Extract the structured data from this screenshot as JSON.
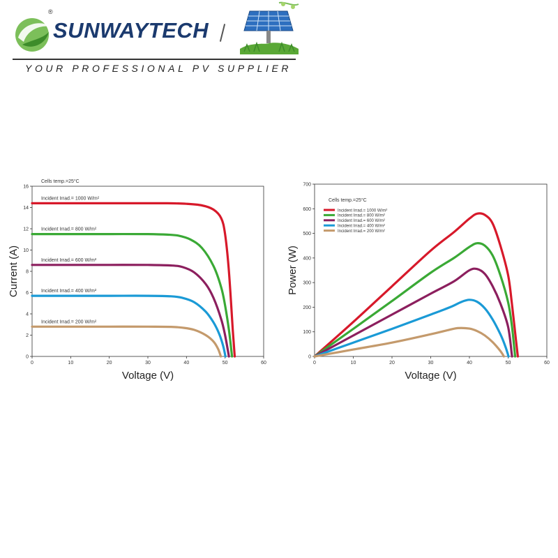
{
  "header": {
    "brand": "SUNWAYTECH",
    "registered": "®",
    "tagline": "YOUR PROFESSIONAL PV SUPPLIER",
    "colors": {
      "brand_text": "#1b3a6e",
      "logo_green": "#6ab04c"
    },
    "icons": [
      "logo-mark-icon",
      "solar-panel-icon"
    ]
  },
  "chart_data": [
    {
      "type": "line",
      "title": "",
      "xlabel": "Voltage (V)",
      "ylabel": "Current (A)",
      "xlim": [
        0,
        60
      ],
      "ylim": [
        0,
        16
      ],
      "xticks": [
        0,
        10,
        20,
        30,
        40,
        50,
        60
      ],
      "yticks": [
        0,
        2,
        4,
        6,
        8,
        10,
        12,
        14,
        16
      ],
      "grid": false,
      "note": "Cells temp.=25°C",
      "series": [
        {
          "name": "Incident Irrad.= 1000 W/m²",
          "color": "#d7192a",
          "x": [
            0,
            10,
            20,
            30,
            35,
            40,
            44,
            47,
            49,
            50,
            51,
            52,
            52.5
          ],
          "y": [
            14.4,
            14.4,
            14.4,
            14.4,
            14.4,
            14.35,
            14.2,
            13.8,
            13.0,
            11.5,
            8.0,
            2.5,
            0
          ]
        },
        {
          "name": "Incident Irrad.= 800 W/m²",
          "color": "#3aa935",
          "x": [
            0,
            10,
            20,
            30,
            35,
            38,
            41,
            44,
            47,
            49,
            50,
            51,
            51.8
          ],
          "y": [
            11.5,
            11.5,
            11.5,
            11.5,
            11.45,
            11.35,
            11.0,
            10.2,
            8.5,
            6.5,
            4.8,
            2.5,
            0
          ]
        },
        {
          "name": "Incident Irrad.= 600 W/m²",
          "color": "#8c1f5e",
          "x": [
            0,
            10,
            20,
            30,
            36,
            39,
            42,
            45,
            47,
            49,
            50,
            51
          ],
          "y": [
            8.6,
            8.6,
            8.6,
            8.6,
            8.55,
            8.4,
            7.9,
            6.8,
            5.5,
            3.5,
            2.0,
            0
          ]
        },
        {
          "name": "Incident Irrad.= 400 W/m²",
          "color": "#1a9ad6",
          "x": [
            0,
            10,
            20,
            30,
            36,
            39,
            42,
            45,
            47,
            48.5,
            49.5,
            50.1
          ],
          "y": [
            5.7,
            5.7,
            5.7,
            5.7,
            5.65,
            5.5,
            5.1,
            4.2,
            3.2,
            2.1,
            1.0,
            0
          ]
        },
        {
          "name": "Incident Irrad.= 200 W/m²",
          "color": "#c49a6c",
          "x": [
            0,
            10,
            20,
            30,
            36,
            39,
            42,
            45,
            47,
            48.2,
            48.9
          ],
          "y": [
            2.8,
            2.8,
            2.8,
            2.8,
            2.78,
            2.7,
            2.5,
            2.0,
            1.4,
            0.7,
            0
          ]
        }
      ]
    },
    {
      "type": "line",
      "title": "",
      "xlabel": "Voltage (V)",
      "ylabel": "Power (W)",
      "xlim": [
        0,
        60
      ],
      "ylim": [
        0,
        700
      ],
      "xticks": [
        0,
        10,
        20,
        30,
        40,
        50,
        60
      ],
      "yticks": [
        0,
        100,
        200,
        300,
        400,
        500,
        600,
        700
      ],
      "grid": false,
      "note": "Cells temp.=25°C",
      "legend": "top-left",
      "series": [
        {
          "name": "Incident Irrad.= 1000 W/m²",
          "color": "#d7192a",
          "x": [
            0,
            10,
            20,
            30,
            36,
            40,
            42,
            44,
            46,
            48,
            50,
            51,
            52,
            52.5
          ],
          "y": [
            0,
            140,
            285,
            430,
            505,
            560,
            580,
            575,
            540,
            450,
            330,
            210,
            70,
            0
          ]
        },
        {
          "name": "Incident Irrad.= 800 W/m²",
          "color": "#3aa935",
          "x": [
            0,
            10,
            20,
            30,
            36,
            40,
            42,
            44,
            46,
            48,
            50,
            51,
            51.8
          ],
          "y": [
            0,
            112,
            225,
            340,
            400,
            445,
            460,
            450,
            410,
            330,
            220,
            120,
            0
          ]
        },
        {
          "name": "Incident Irrad.= 600 W/m²",
          "color": "#8c1f5e",
          "x": [
            0,
            10,
            20,
            30,
            36,
            40,
            42,
            44,
            46,
            48,
            50,
            51
          ],
          "y": [
            0,
            85,
            170,
            255,
            305,
            350,
            355,
            335,
            285,
            215,
            120,
            0
          ]
        },
        {
          "name": "Incident Irrad.= 400 W/m²",
          "color": "#1a9ad6",
          "x": [
            0,
            10,
            20,
            30,
            35,
            38,
            40,
            42,
            44,
            46,
            48,
            49.3,
            50.1
          ],
          "y": [
            0,
            56,
            112,
            170,
            200,
            222,
            230,
            222,
            195,
            150,
            90,
            40,
            0
          ]
        },
        {
          "name": "Incident Irrad.= 200 W/m²",
          "color": "#c49a6c",
          "x": [
            0,
            10,
            20,
            30,
            34,
            37,
            40,
            42,
            44,
            46,
            48,
            48.9
          ],
          "y": [
            0,
            28,
            56,
            90,
            105,
            115,
            113,
            103,
            85,
            58,
            22,
            0
          ]
        }
      ]
    }
  ]
}
